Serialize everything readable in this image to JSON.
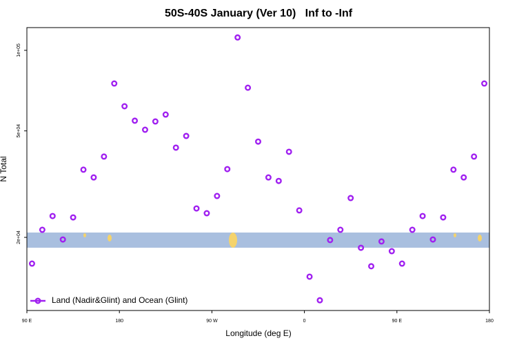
{
  "chart_data": {
    "type": "scatter",
    "title": "50S-40S January (Ver 10)   Inf to -Inf",
    "x_label": "Longitude (deg E)",
    "y_label": "N Total",
    "x": [
      95,
      105,
      115,
      125,
      135,
      145,
      155,
      165,
      175,
      185,
      195,
      205,
      215,
      225,
      235,
      245,
      255,
      265,
      275,
      285,
      295,
      305,
      315,
      325,
      335,
      345,
      355,
      365,
      375,
      385,
      395,
      405,
      415,
      425,
      435,
      445,
      455,
      465,
      475,
      485,
      495,
      505,
      515,
      525,
      535
    ],
    "series": [
      {
        "name": "Land (Nadir&Glint) and Ocean (Glint)",
        "color": "#a020f0",
        "values": [
          15960,
          21350,
          24030,
          19640,
          23750,
          35810,
          33500,
          40090,
          75160,
          61800,
          54580,
          50500,
          54230,
          57540,
          43290,
          47860,
          25650,
          24620,
          28560,
          35980,
          111700,
          72490,
          45600,
          33500,
          32510,
          41780,
          25230,
          14260,
          11640,
          19540,
          21350,
          28050,
          18290,
          15600,
          19310,
          17760,
          15960,
          21350,
          24030,
          19640,
          23750,
          35810,
          33500,
          40090,
          75160
        ]
      }
    ],
    "xlim": [
      90,
      540
    ],
    "xticks": [
      {
        "value": 90,
        "label": "90 E"
      },
      {
        "value": 180,
        "label": "180"
      },
      {
        "value": 270,
        "label": "90 W"
      },
      {
        "value": 360,
        "label": "0"
      },
      {
        "value": 450,
        "label": "90 E"
      },
      {
        "value": 540,
        "label": "180"
      }
    ],
    "ylim": [
      10660,
      121600
    ],
    "yticks": [
      {
        "value": 20000,
        "label": "2e+04"
      },
      {
        "value": 50000,
        "label": "5e+04"
      },
      {
        "value": 100000,
        "label": "1e+05"
      }
    ],
    "log_y": true,
    "legend": "bottomleft"
  }
}
